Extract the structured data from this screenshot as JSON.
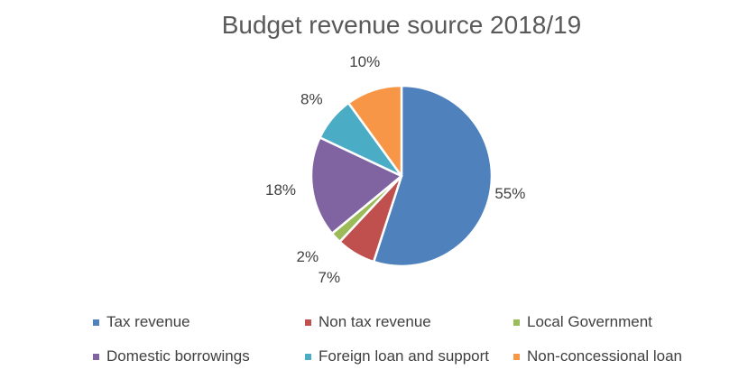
{
  "chart_data": {
    "type": "pie",
    "title": "Budget revenue source 2018/19",
    "slices": [
      {
        "name": "Tax revenue",
        "value": 55,
        "label": "55%",
        "color": "#4f81bd"
      },
      {
        "name": "Non tax revenue",
        "value": 7,
        "label": "7%",
        "color": "#c0504d"
      },
      {
        "name": "Local Government",
        "value": 2,
        "label": "2%",
        "color": "#9bbb59"
      },
      {
        "name": "Domestic borrowings",
        "value": 18,
        "label": "18%",
        "color": "#8064a2"
      },
      {
        "name": "Foreign loan and support",
        "value": 8,
        "label": "8%",
        "color": "#4bacc6"
      },
      {
        "name": "Non-concessional loan",
        "value": 10,
        "label": "10%",
        "color": "#f79646"
      }
    ],
    "legend_position": "bottom"
  }
}
